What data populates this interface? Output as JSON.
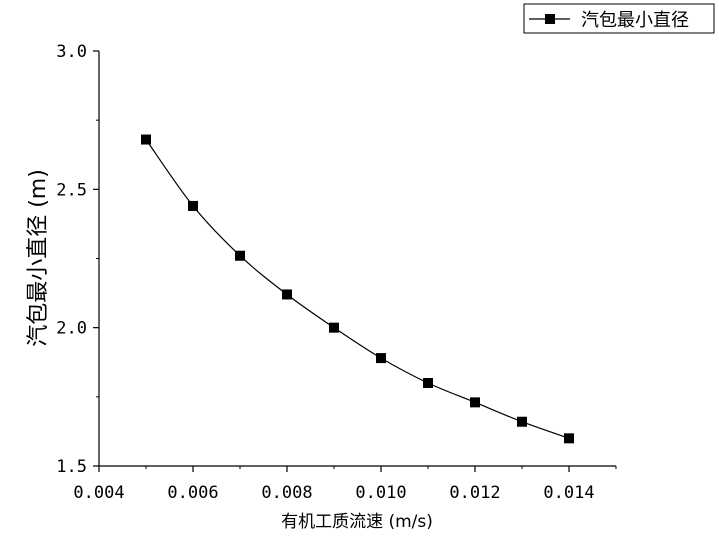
{
  "chart_data": {
    "type": "line",
    "x": [
      0.005,
      0.006,
      0.007,
      0.008,
      0.009,
      0.01,
      0.011,
      0.012,
      0.013,
      0.014
    ],
    "series": [
      {
        "name": "汽包最小直径",
        "values": [
          2.68,
          2.44,
          2.26,
          2.12,
          2.0,
          1.89,
          1.8,
          1.73,
          1.66,
          1.6
        ],
        "marker": "square",
        "color": "#000000"
      }
    ],
    "xlabel": "有机工质流速 (m/s)",
    "ylabel": "汽包最小直径 (m)",
    "xlim": [
      0.004,
      0.015
    ],
    "ylim": [
      1.5,
      3.0
    ],
    "xticks": [
      "0.004",
      "0.006",
      "0.008",
      "0.010",
      "0.012",
      "0.014"
    ],
    "yticks": [
      "1.5",
      "2.0",
      "2.5",
      "3.0"
    ],
    "grid": false,
    "legend": "top-right"
  }
}
